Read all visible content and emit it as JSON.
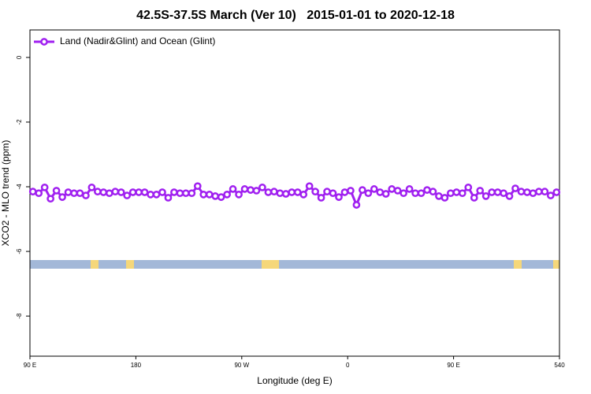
{
  "chart_data": {
    "type": "line",
    "title": "42.5S-37.5S March (Ver 10)   2015-01-01 to 2020-12-18",
    "xlabel": "Longitude (deg E)",
    "ylabel": "XCO2 - MLO trend (ppm)",
    "xlim": [
      90,
      540
    ],
    "ylim": [
      -9.24,
      0.85
    ],
    "xticks": [
      {
        "value": 90,
        "label": "90 E"
      },
      180,
      {
        "value": 270,
        "label": "90 W"
      },
      {
        "value": 360,
        "label": "0"
      },
      {
        "value": 450,
        "label": "90 E"
      },
      540
    ],
    "yticks": [
      0,
      -2,
      -4,
      -6,
      -8
    ],
    "legend": "top-left",
    "x": [
      92.5,
      97.5,
      102.5,
      107.5,
      112.5,
      117.5,
      122.5,
      127.5,
      132.5,
      137.5,
      142.5,
      147.5,
      152.5,
      157.5,
      162.5,
      167.5,
      172.5,
      177.5,
      182.5,
      187.5,
      192.5,
      197.5,
      202.5,
      207.5,
      212.5,
      217.5,
      222.5,
      227.5,
      232.5,
      237.5,
      242.5,
      247.5,
      252.5,
      257.5,
      262.5,
      267.5,
      272.5,
      277.5,
      282.5,
      287.5,
      292.5,
      297.5,
      302.5,
      307.5,
      312.5,
      317.5,
      322.5,
      327.5,
      332.5,
      337.5,
      342.5,
      347.5,
      352.5,
      357.5,
      362.5,
      367.5,
      372.5,
      377.5,
      382.5,
      387.5,
      392.5,
      397.5,
      402.5,
      407.5,
      412.5,
      417.5,
      422.5,
      427.5,
      432.5,
      437.5,
      442.5,
      447.5,
      452.5,
      457.5,
      462.5,
      467.5,
      472.5,
      477.5,
      482.5,
      487.5,
      492.5,
      497.5,
      502.5,
      507.5,
      512.5,
      517.5,
      522.5,
      527.5,
      532.5,
      537.5
    ],
    "series": [
      {
        "name": "Land (Nadir&Glint) and Ocean (Glint)",
        "color": "#a020f0",
        "values": [
          -4.15,
          -4.2,
          -4.02,
          -4.37,
          -4.12,
          -4.32,
          -4.17,
          -4.2,
          -4.2,
          -4.27,
          -4.02,
          -4.15,
          -4.17,
          -4.2,
          -4.15,
          -4.17,
          -4.27,
          -4.17,
          -4.17,
          -4.17,
          -4.24,
          -4.24,
          -4.17,
          -4.34,
          -4.17,
          -4.2,
          -4.2,
          -4.2,
          -3.98,
          -4.24,
          -4.24,
          -4.29,
          -4.32,
          -4.24,
          -4.07,
          -4.24,
          -4.07,
          -4.1,
          -4.12,
          -4.02,
          -4.17,
          -4.15,
          -4.2,
          -4.22,
          -4.17,
          -4.17,
          -4.24,
          -3.98,
          -4.15,
          -4.34,
          -4.15,
          -4.2,
          -4.32,
          -4.17,
          -4.12,
          -4.56,
          -4.1,
          -4.2,
          -4.07,
          -4.17,
          -4.22,
          -4.07,
          -4.12,
          -4.2,
          -4.07,
          -4.2,
          -4.2,
          -4.1,
          -4.15,
          -4.29,
          -4.34,
          -4.2,
          -4.17,
          -4.2,
          -4.02,
          -4.34,
          -4.12,
          -4.29,
          -4.17,
          -4.17,
          -4.2,
          -4.29,
          -4.05,
          -4.15,
          -4.17,
          -4.2,
          -4.15,
          -4.15,
          -4.27,
          -4.17
        ]
      }
    ]
  }
}
